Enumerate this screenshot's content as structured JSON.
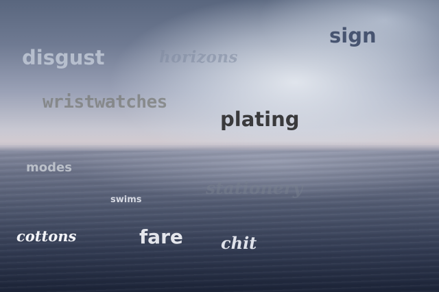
{
  "scene": {
    "description_colors": {
      "sky_top": "#59667e",
      "sky_glow": "#eef2f7",
      "horizon": "#c4c0ca",
      "sea_deep": "#1c2438"
    }
  },
  "words": {
    "disgust": "disgust",
    "horizons": "horizons",
    "sign": "sign",
    "wristwatches": "wristwatches",
    "plating": "plating",
    "modes": "modes",
    "stationery": "stationery",
    "swims": "swims",
    "cottons": "cottons",
    "fare": "fare",
    "chit": "chit"
  }
}
